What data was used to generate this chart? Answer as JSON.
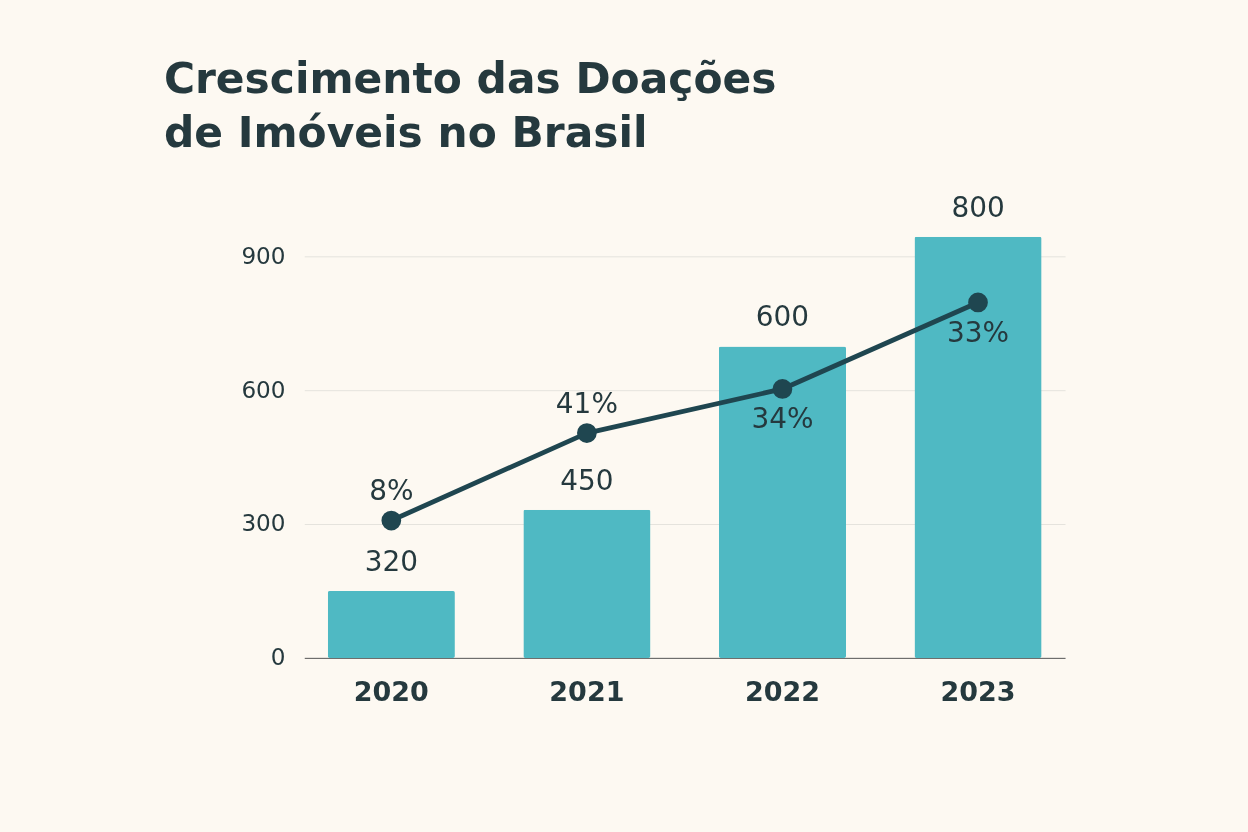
{
  "chart_data": {
    "type": "bar",
    "title": "Crescimento das Doações de Imóveis no Brasil",
    "categories": [
      "2020",
      "2021",
      "2022",
      "2023"
    ],
    "series": [
      {
        "color": "#4fb9c3",
        "values": [
          150,
          332,
          698,
          944
        ]
      },
      {
        "type": "line",
        "color": "#1f4650",
        "values": [
          308,
          504,
          603,
          797
        ]
      }
    ],
    "annotations": [
      {
        "text": "320",
        "x": "2020",
        "y": 150
      },
      {
        "text": "450",
        "x": "2021",
        "y": 332
      },
      {
        "text": "600",
        "x": "2022",
        "y": 698
      },
      {
        "text": "800",
        "x": "2023",
        "y": 944
      },
      {
        "text": "8%",
        "x": "2020",
        "y": 308
      },
      {
        "text": "41%",
        "x": "2021",
        "y": 504
      },
      {
        "text": "34%",
        "x": "2022",
        "y": 603
      },
      {
        "text": "33%",
        "x": "2023",
        "y": 797
      }
    ],
    "ylim": [
      0,
      950
    ],
    "yticks": [
      0,
      300,
      600,
      900
    ],
    "grid": "y",
    "marker": "circle",
    "line_style": "solid"
  }
}
